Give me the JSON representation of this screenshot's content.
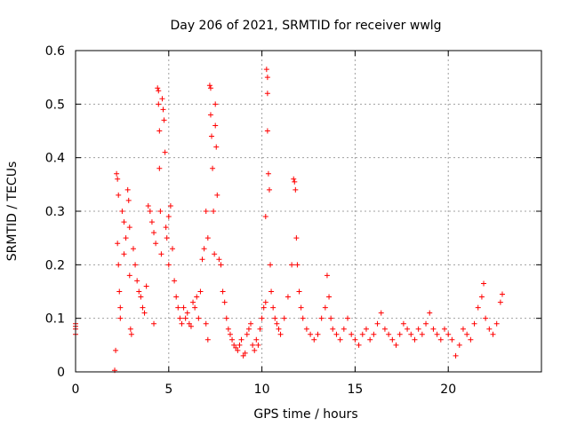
{
  "chart_data": {
    "type": "scatter",
    "title": "Day 206 of 2021, SRMTID for receiver wwlg",
    "xlabel": "GPS time / hours",
    "ylabel": "SRMTID / TECUs",
    "xlim": [
      0,
      25
    ],
    "ylim": [
      0,
      0.6
    ],
    "xticks": [
      0,
      5,
      10,
      15,
      20
    ],
    "yticks": [
      0,
      0.1,
      0.2,
      0.3,
      0.4,
      0.5,
      0.6
    ],
    "xtick_labels": [
      "0",
      "5",
      "10",
      "15",
      "20"
    ],
    "ytick_labels": [
      "0",
      "0.1",
      "0.2",
      "0.3",
      "0.4",
      "0.5",
      "0.6"
    ],
    "grid": true,
    "marker": "+",
    "color": "#ff0000",
    "series": [
      {
        "name": "SRMTID",
        "points": [
          [
            0.0,
            0.07
          ],
          [
            0.0,
            0.08
          ],
          [
            0.0,
            0.085
          ],
          [
            0.0,
            0.09
          ],
          [
            2.1,
            0.003
          ],
          [
            2.15,
            0.04
          ],
          [
            2.2,
            0.37
          ],
          [
            2.25,
            0.36
          ],
          [
            2.3,
            0.33
          ],
          [
            2.25,
            0.24
          ],
          [
            2.3,
            0.2
          ],
          [
            2.35,
            0.15
          ],
          [
            2.4,
            0.12
          ],
          [
            2.4,
            0.1
          ],
          [
            2.5,
            0.3
          ],
          [
            2.6,
            0.28
          ],
          [
            2.6,
            0.22
          ],
          [
            2.7,
            0.25
          ],
          [
            2.8,
            0.34
          ],
          [
            2.85,
            0.32
          ],
          [
            2.9,
            0.27
          ],
          [
            2.9,
            0.18
          ],
          [
            2.95,
            0.08
          ],
          [
            3.0,
            0.07
          ],
          [
            3.1,
            0.23
          ],
          [
            3.2,
            0.2
          ],
          [
            3.3,
            0.17
          ],
          [
            3.4,
            0.15
          ],
          [
            3.5,
            0.14
          ],
          [
            3.6,
            0.12
          ],
          [
            3.7,
            0.11
          ],
          [
            3.8,
            0.16
          ],
          [
            3.9,
            0.31
          ],
          [
            4.0,
            0.3
          ],
          [
            4.1,
            0.28
          ],
          [
            4.2,
            0.26
          ],
          [
            4.2,
            0.09
          ],
          [
            4.3,
            0.24
          ],
          [
            4.4,
            0.53
          ],
          [
            4.45,
            0.525
          ],
          [
            4.45,
            0.5
          ],
          [
            4.5,
            0.45
          ],
          [
            4.5,
            0.38
          ],
          [
            4.55,
            0.3
          ],
          [
            4.6,
            0.22
          ],
          [
            4.65,
            0.51
          ],
          [
            4.7,
            0.49
          ],
          [
            4.75,
            0.47
          ],
          [
            4.8,
            0.41
          ],
          [
            4.85,
            0.27
          ],
          [
            4.9,
            0.25
          ],
          [
            5.0,
            0.29
          ],
          [
            5.0,
            0.2
          ],
          [
            5.1,
            0.31
          ],
          [
            5.2,
            0.23
          ],
          [
            5.3,
            0.17
          ],
          [
            5.4,
            0.14
          ],
          [
            5.5,
            0.12
          ],
          [
            5.6,
            0.1
          ],
          [
            5.7,
            0.09
          ],
          [
            5.8,
            0.12
          ],
          [
            5.9,
            0.1
          ],
          [
            6.0,
            0.11
          ],
          [
            6.1,
            0.09
          ],
          [
            6.2,
            0.085
          ],
          [
            6.3,
            0.13
          ],
          [
            6.4,
            0.12
          ],
          [
            6.5,
            0.14
          ],
          [
            6.6,
            0.1
          ],
          [
            6.7,
            0.15
          ],
          [
            6.8,
            0.21
          ],
          [
            6.9,
            0.23
          ],
          [
            7.0,
            0.3
          ],
          [
            7.0,
            0.09
          ],
          [
            7.1,
            0.25
          ],
          [
            7.1,
            0.06
          ],
          [
            7.2,
            0.535
          ],
          [
            7.25,
            0.53
          ],
          [
            7.25,
            0.48
          ],
          [
            7.3,
            0.44
          ],
          [
            7.35,
            0.38
          ],
          [
            7.4,
            0.3
          ],
          [
            7.45,
            0.22
          ],
          [
            7.5,
            0.5
          ],
          [
            7.5,
            0.46
          ],
          [
            7.55,
            0.42
          ],
          [
            7.6,
            0.33
          ],
          [
            7.7,
            0.21
          ],
          [
            7.8,
            0.2
          ],
          [
            7.9,
            0.15
          ],
          [
            8.0,
            0.13
          ],
          [
            8.1,
            0.1
          ],
          [
            8.2,
            0.08
          ],
          [
            8.3,
            0.07
          ],
          [
            8.4,
            0.06
          ],
          [
            8.5,
            0.05
          ],
          [
            8.6,
            0.045
          ],
          [
            8.7,
            0.04
          ],
          [
            8.8,
            0.05
          ],
          [
            8.9,
            0.06
          ],
          [
            9.0,
            0.03
          ],
          [
            9.1,
            0.035
          ],
          [
            9.2,
            0.07
          ],
          [
            9.3,
            0.08
          ],
          [
            9.4,
            0.09
          ],
          [
            9.5,
            0.05
          ],
          [
            9.6,
            0.04
          ],
          [
            9.7,
            0.06
          ],
          [
            9.8,
            0.05
          ],
          [
            9.9,
            0.08
          ],
          [
            10.0,
            0.1
          ],
          [
            10.1,
            0.12
          ],
          [
            10.2,
            0.29
          ],
          [
            10.2,
            0.13
          ],
          [
            10.25,
            0.565
          ],
          [
            10.3,
            0.55
          ],
          [
            10.3,
            0.52
          ],
          [
            10.3,
            0.45
          ],
          [
            10.35,
            0.37
          ],
          [
            10.4,
            0.34
          ],
          [
            10.45,
            0.2
          ],
          [
            10.5,
            0.15
          ],
          [
            10.6,
            0.12
          ],
          [
            10.7,
            0.1
          ],
          [
            10.8,
            0.09
          ],
          [
            10.9,
            0.08
          ],
          [
            11.0,
            0.07
          ],
          [
            11.2,
            0.1
          ],
          [
            11.4,
            0.14
          ],
          [
            11.6,
            0.2
          ],
          [
            11.7,
            0.36
          ],
          [
            11.75,
            0.355
          ],
          [
            11.8,
            0.34
          ],
          [
            11.85,
            0.25
          ],
          [
            11.9,
            0.2
          ],
          [
            12.0,
            0.15
          ],
          [
            12.1,
            0.12
          ],
          [
            12.2,
            0.1
          ],
          [
            12.4,
            0.08
          ],
          [
            12.6,
            0.07
          ],
          [
            12.8,
            0.06
          ],
          [
            13.0,
            0.07
          ],
          [
            13.2,
            0.1
          ],
          [
            13.4,
            0.12
          ],
          [
            13.5,
            0.18
          ],
          [
            13.6,
            0.14
          ],
          [
            13.7,
            0.1
          ],
          [
            13.8,
            0.08
          ],
          [
            14.0,
            0.07
          ],
          [
            14.2,
            0.06
          ],
          [
            14.4,
            0.08
          ],
          [
            14.6,
            0.1
          ],
          [
            14.8,
            0.07
          ],
          [
            15.0,
            0.06
          ],
          [
            15.2,
            0.05
          ],
          [
            15.4,
            0.07
          ],
          [
            15.6,
            0.08
          ],
          [
            15.8,
            0.06
          ],
          [
            16.0,
            0.07
          ],
          [
            16.2,
            0.09
          ],
          [
            16.4,
            0.11
          ],
          [
            16.6,
            0.08
          ],
          [
            16.8,
            0.07
          ],
          [
            17.0,
            0.06
          ],
          [
            17.2,
            0.05
          ],
          [
            17.4,
            0.07
          ],
          [
            17.6,
            0.09
          ],
          [
            17.8,
            0.08
          ],
          [
            18.0,
            0.07
          ],
          [
            18.2,
            0.06
          ],
          [
            18.4,
            0.08
          ],
          [
            18.6,
            0.07
          ],
          [
            18.8,
            0.09
          ],
          [
            19.0,
            0.11
          ],
          [
            19.2,
            0.08
          ],
          [
            19.4,
            0.07
          ],
          [
            19.6,
            0.06
          ],
          [
            19.8,
            0.08
          ],
          [
            20.0,
            0.07
          ],
          [
            20.2,
            0.06
          ],
          [
            20.4,
            0.03
          ],
          [
            20.6,
            0.05
          ],
          [
            20.8,
            0.08
          ],
          [
            21.0,
            0.07
          ],
          [
            21.2,
            0.06
          ],
          [
            21.4,
            0.09
          ],
          [
            21.6,
            0.12
          ],
          [
            21.8,
            0.14
          ],
          [
            21.9,
            0.165
          ],
          [
            22.0,
            0.1
          ],
          [
            22.2,
            0.08
          ],
          [
            22.4,
            0.07
          ],
          [
            22.6,
            0.09
          ],
          [
            22.8,
            0.13
          ],
          [
            22.9,
            0.145
          ]
        ]
      }
    ]
  }
}
